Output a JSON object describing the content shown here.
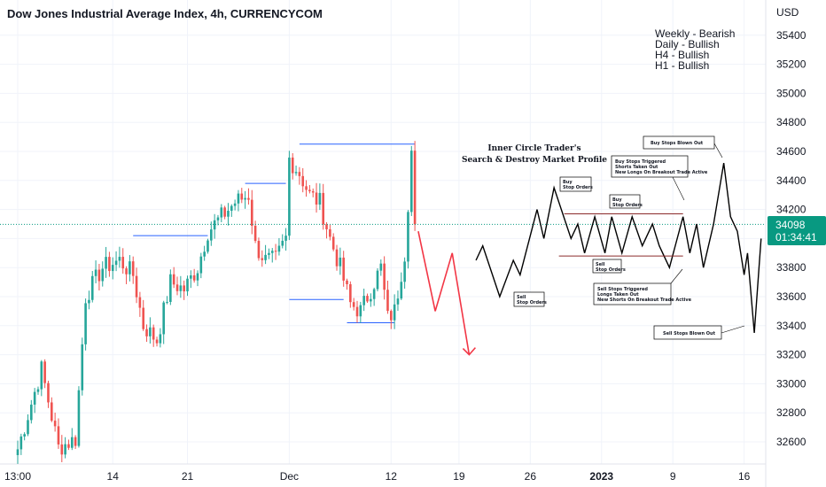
{
  "header": {
    "title": "Dow Jones Industrial Average Index, 4h, CURRENCYCOM"
  },
  "bias": {
    "weekly": "Weekly - Bearish",
    "daily": "Daily - Bullish",
    "h4": "H4 - Bullish",
    "h1": "H1 - Bullish"
  },
  "price_axis": {
    "currency": "USD",
    "last_price": "34098",
    "countdown": "01:34:41"
  },
  "diagram": {
    "title_line1": "Inner Circle Trader's",
    "title_line2": "Search & Destroy Market Profile",
    "labels": {
      "buy_stops_blown": "Buy Stops Blown Out",
      "buy_stops_triggered_1": "Buy Stops Triggered",
      "buy_stops_triggered_2": "Shorts Taken Out",
      "buy_stops_triggered_3": "New Longs On Breakout Trade Active",
      "buy_left_1": "Buy",
      "buy_left_2": "Stop Orders",
      "buy_mid_1": "Buy",
      "buy_mid_2": "Stop Orders",
      "sell_mid_1": "Sell",
      "sell_mid_2": "Stop Orders",
      "sell_left_1": "Sell",
      "sell_left_2": "Stop Orders",
      "sell_stops_triggered_1": "Sell Stops Triggered",
      "sell_stops_triggered_2": "Longs Taken Out",
      "sell_stops_triggered_3": "New Shorts On Breakout Trade Active",
      "sell_stops_blown": "Sell Stops Blown Out"
    }
  },
  "colors": {
    "up": "#26a69a",
    "down": "#ef5350",
    "level_line": "#2962ff",
    "projection": "#f23645",
    "last_price_line": "#089981",
    "profile_line": "#000000",
    "range_line": "#8b2b2b"
  },
  "chart_data": {
    "type": "candlestick",
    "symbol": "Dow Jones Industrial Average Index",
    "timeframe": "4h",
    "source": "CURRENCYCOM",
    "y_axis": {
      "unit": "USD",
      "ticks": [
        32600,
        32800,
        33000,
        33200,
        33400,
        33600,
        33800,
        34000,
        34200,
        34400,
        34600,
        34800,
        35000,
        35200,
        35400
      ],
      "ylim": [
        32450,
        35560
      ]
    },
    "x_axis": {
      "ticks": [
        {
          "label": "13:00",
          "bar": 0
        },
        {
          "label": "14",
          "bar": 28
        },
        {
          "label": "21",
          "bar": 50
        },
        {
          "label": "Dec",
          "bar": 80
        },
        {
          "label": "12",
          "bar": 110
        },
        {
          "label": "19",
          "bar": 130
        },
        {
          "label": "26",
          "bar": 151
        },
        {
          "label": "2023",
          "bar": 172
        },
        {
          "label": "9",
          "bar": 193
        },
        {
          "label": "16",
          "bar": 214
        }
      ]
    },
    "last_price": 34098,
    "waypoints": [
      {
        "bar": 0,
        "close": 32550
      },
      {
        "bar": 7,
        "close": 33100
      },
      {
        "bar": 12,
        "close": 32560
      },
      {
        "bar": 17,
        "close": 32620
      },
      {
        "bar": 20,
        "close": 33600
      },
      {
        "bar": 25,
        "close": 33800
      },
      {
        "bar": 30,
        "close": 33850
      },
      {
        "bar": 34,
        "close": 33750
      },
      {
        "bar": 37,
        "close": 33400
      },
      {
        "bar": 41,
        "close": 33300
      },
      {
        "bar": 45,
        "close": 33700
      },
      {
        "bar": 49,
        "close": 33650
      },
      {
        "bar": 53,
        "close": 33800
      },
      {
        "bar": 56,
        "close": 34050
      },
      {
        "bar": 60,
        "close": 34150
      },
      {
        "bar": 64,
        "close": 34250
      },
      {
        "bar": 68,
        "close": 34300
      },
      {
        "bar": 70,
        "close": 33950
      },
      {
        "bar": 73,
        "close": 33850
      },
      {
        "bar": 76,
        "close": 33850
      },
      {
        "bar": 79,
        "close": 34000
      },
      {
        "bar": 80,
        "close": 34550
      },
      {
        "bar": 83,
        "close": 34450
      },
      {
        "bar": 86,
        "close": 34300
      },
      {
        "bar": 89,
        "close": 34250
      },
      {
        "bar": 92,
        "close": 34000
      },
      {
        "bar": 95,
        "close": 33800
      },
      {
        "bar": 98,
        "close": 33550
      },
      {
        "bar": 101,
        "close": 33500
      },
      {
        "bar": 104,
        "close": 33650
      },
      {
        "bar": 107,
        "close": 33800
      },
      {
        "bar": 109,
        "close": 33450
      },
      {
        "bar": 111,
        "close": 33500
      },
      {
        "bar": 114,
        "close": 33900
      },
      {
        "bar": 116,
        "close": 34600
      },
      {
        "bar": 117,
        "close": 34098
      }
    ],
    "levels": [
      {
        "price": 34650,
        "from_bar": 83,
        "to_bar": 117
      },
      {
        "price": 34380,
        "from_bar": 67,
        "to_bar": 79
      },
      {
        "price": 34020,
        "from_bar": 34,
        "to_bar": 56
      },
      {
        "price": 33580,
        "from_bar": 80,
        "to_bar": 96
      },
      {
        "price": 33420,
        "from_bar": 97,
        "to_bar": 111
      }
    ],
    "projection": [
      {
        "bar": 118,
        "price": 34050
      },
      {
        "bar": 123,
        "price": 33500
      },
      {
        "bar": 128,
        "price": 33900
      },
      {
        "bar": 133,
        "price": 33200
      }
    ],
    "profile_path": [
      {
        "bar": 135,
        "price": 33850
      },
      {
        "bar": 137,
        "price": 33950
      },
      {
        "bar": 142,
        "price": 33600
      },
      {
        "bar": 146,
        "price": 33850
      },
      {
        "bar": 148,
        "price": 33750
      },
      {
        "bar": 153,
        "price": 34200
      },
      {
        "bar": 155,
        "price": 34000
      },
      {
        "bar": 158,
        "price": 34350
      },
      {
        "bar": 163,
        "price": 34000
      },
      {
        "bar": 165,
        "price": 34100
      },
      {
        "bar": 167,
        "price": 33900
      },
      {
        "bar": 170,
        "price": 34150
      },
      {
        "bar": 173,
        "price": 33900
      },
      {
        "bar": 175,
        "price": 34150
      },
      {
        "bar": 178,
        "price": 33900
      },
      {
        "bar": 181,
        "price": 34150
      },
      {
        "bar": 184,
        "price": 33950
      },
      {
        "bar": 187,
        "price": 34100
      },
      {
        "bar": 189,
        "price": 33950
      },
      {
        "bar": 192,
        "price": 33800
      },
      {
        "bar": 196,
        "price": 34150
      },
      {
        "bar": 198,
        "price": 33900
      },
      {
        "bar": 200,
        "price": 34100
      },
      {
        "bar": 202,
        "price": 33800
      },
      {
        "bar": 205,
        "price": 34100
      },
      {
        "bar": 208,
        "price": 34520
      },
      {
        "bar": 210,
        "price": 34150
      },
      {
        "bar": 212,
        "price": 34050
      },
      {
        "bar": 214,
        "price": 33750
      },
      {
        "bar": 215,
        "price": 33900
      },
      {
        "bar": 217,
        "price": 33350
      },
      {
        "bar": 219,
        "price": 34000
      }
    ],
    "profile_range": {
      "upper": 34170,
      "lower": 33880,
      "from_bar": 161,
      "to_bar": 196
    }
  }
}
